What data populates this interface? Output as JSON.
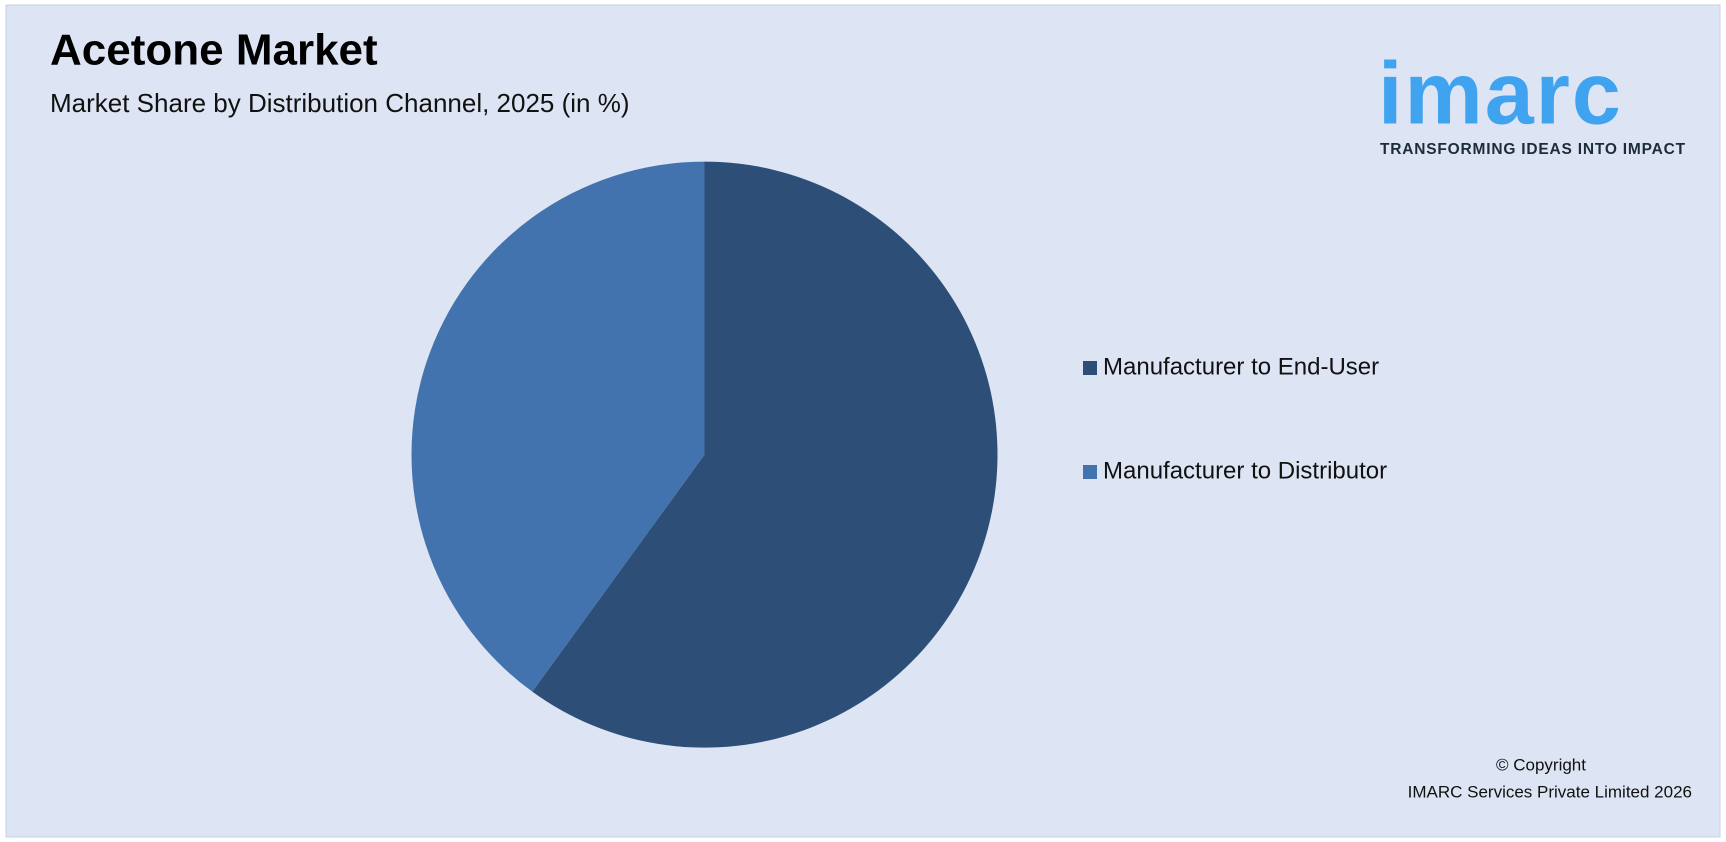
{
  "chart_data": {
    "type": "pie",
    "title": "Acetone Market",
    "subtitle": "Market Share by Distribution Channel, 2025 (in %)",
    "categories": [
      "Manufacturer to End-User",
      "Manufacturer to Distributor"
    ],
    "values": [
      60,
      40
    ],
    "colors": [
      "#2d4f77",
      "#4273ae"
    ],
    "legend": "right"
  },
  "logo": {
    "name": "imarc",
    "tagline": "TRANSFORMING IDEAS INTO IMPACT"
  },
  "footer": {
    "copyright": "© Copyright",
    "owner": "IMARC Services Private Limited 2026"
  }
}
